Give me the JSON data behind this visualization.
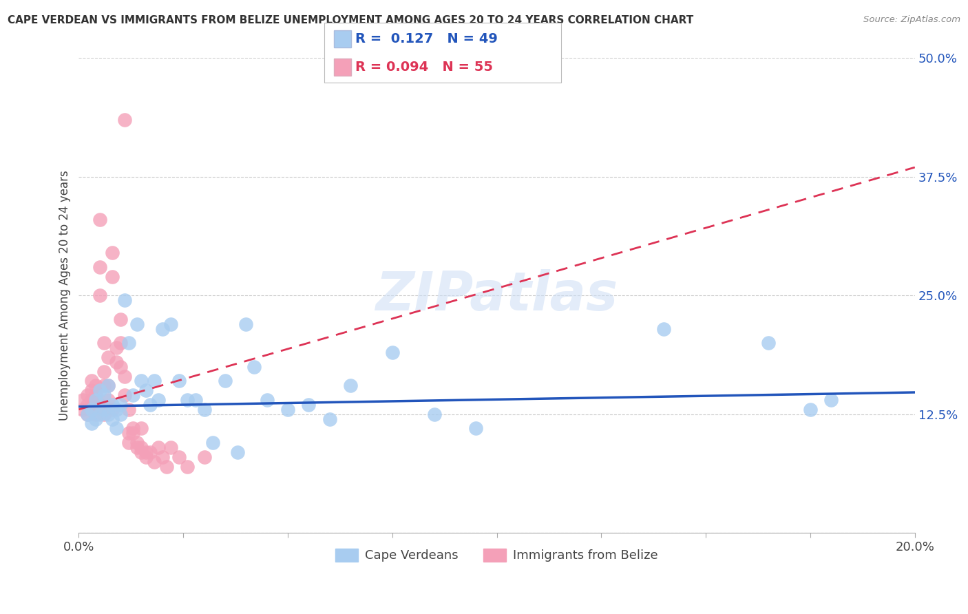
{
  "title": "CAPE VERDEAN VS IMMIGRANTS FROM BELIZE UNEMPLOYMENT AMONG AGES 20 TO 24 YEARS CORRELATION CHART",
  "source": "Source: ZipAtlas.com",
  "ylabel": "Unemployment Among Ages 20 to 24 years",
  "xlim": [
    0.0,
    0.2
  ],
  "ylim": [
    0.0,
    0.5
  ],
  "xticks": [
    0.0,
    0.025,
    0.05,
    0.075,
    0.1,
    0.125,
    0.15,
    0.175,
    0.2
  ],
  "xticklabels": [
    "0.0%",
    "",
    "",
    "",
    "",
    "",
    "",
    "",
    "20.0%"
  ],
  "yticks": [
    0.0,
    0.125,
    0.25,
    0.375,
    0.5
  ],
  "yticklabels": [
    "",
    "12.5%",
    "25.0%",
    "37.5%",
    "50.0%"
  ],
  "watermark": "ZIPatlas",
  "blue_color": "#a8ccf0",
  "pink_color": "#f4a0b8",
  "blue_line_color": "#2255bb",
  "pink_line_color": "#dd3355",
  "blue_trend": [
    0.127,
    0.113,
    0.145
  ],
  "pink_trend": [
    0.094,
    0.128,
    0.38
  ],
  "cape_verdean_x": [
    0.002,
    0.003,
    0.003,
    0.004,
    0.004,
    0.005,
    0.005,
    0.006,
    0.006,
    0.007,
    0.007,
    0.008,
    0.008,
    0.009,
    0.009,
    0.01,
    0.01,
    0.011,
    0.012,
    0.013,
    0.014,
    0.015,
    0.016,
    0.017,
    0.018,
    0.019,
    0.02,
    0.022,
    0.024,
    0.026,
    0.028,
    0.03,
    0.032,
    0.035,
    0.038,
    0.04,
    0.042,
    0.045,
    0.05,
    0.055,
    0.06,
    0.065,
    0.075,
    0.085,
    0.095,
    0.14,
    0.165,
    0.175,
    0.18
  ],
  "cape_verdean_y": [
    0.125,
    0.13,
    0.115,
    0.14,
    0.12,
    0.15,
    0.125,
    0.13,
    0.145,
    0.125,
    0.155,
    0.135,
    0.12,
    0.13,
    0.11,
    0.125,
    0.135,
    0.245,
    0.2,
    0.145,
    0.22,
    0.16,
    0.15,
    0.135,
    0.16,
    0.14,
    0.215,
    0.22,
    0.16,
    0.14,
    0.14,
    0.13,
    0.095,
    0.16,
    0.085,
    0.22,
    0.175,
    0.14,
    0.13,
    0.135,
    0.12,
    0.155,
    0.19,
    0.125,
    0.11,
    0.215,
    0.2,
    0.13,
    0.14
  ],
  "belize_x": [
    0.001,
    0.001,
    0.002,
    0.002,
    0.002,
    0.003,
    0.003,
    0.003,
    0.003,
    0.004,
    0.004,
    0.004,
    0.005,
    0.005,
    0.005,
    0.005,
    0.006,
    0.006,
    0.006,
    0.006,
    0.007,
    0.007,
    0.007,
    0.008,
    0.008,
    0.008,
    0.009,
    0.009,
    0.01,
    0.01,
    0.01,
    0.011,
    0.011,
    0.011,
    0.012,
    0.012,
    0.012,
    0.013,
    0.013,
    0.014,
    0.014,
    0.015,
    0.015,
    0.015,
    0.016,
    0.016,
    0.017,
    0.018,
    0.019,
    0.02,
    0.021,
    0.022,
    0.024,
    0.026,
    0.03
  ],
  "belize_y": [
    0.13,
    0.14,
    0.125,
    0.145,
    0.135,
    0.13,
    0.15,
    0.14,
    0.16,
    0.145,
    0.155,
    0.125,
    0.135,
    0.25,
    0.28,
    0.33,
    0.17,
    0.2,
    0.155,
    0.125,
    0.155,
    0.185,
    0.14,
    0.27,
    0.295,
    0.13,
    0.195,
    0.18,
    0.175,
    0.225,
    0.2,
    0.165,
    0.145,
    0.435,
    0.13,
    0.105,
    0.095,
    0.105,
    0.11,
    0.095,
    0.09,
    0.09,
    0.11,
    0.085,
    0.085,
    0.08,
    0.085,
    0.075,
    0.09,
    0.08,
    0.07,
    0.09,
    0.08,
    0.07,
    0.08
  ]
}
